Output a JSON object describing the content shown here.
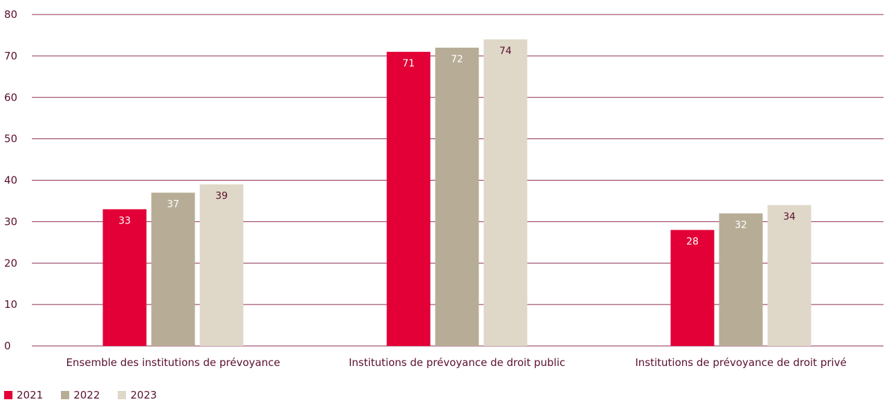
{
  "chart_data": {
    "type": "bar",
    "categories": [
      "Ensemble des institutions de prévoyance",
      "Institutions de prévoyance de droit public",
      "Institutions de prévoyance de droit privé"
    ],
    "series": [
      {
        "name": "2021",
        "values": [
          33,
          71,
          28
        ],
        "color": "#e20037"
      },
      {
        "name": "2022",
        "values": [
          37,
          72,
          32
        ],
        "color": "#b7ad97"
      },
      {
        "name": "2023",
        "values": [
          39,
          74,
          34
        ],
        "color": "#dfd8c8"
      }
    ],
    "ylim": [
      0,
      80
    ],
    "yticks": [
      0,
      10,
      20,
      30,
      40,
      50,
      60,
      70,
      80
    ],
    "grid": true,
    "legend_position": "bottom-left",
    "gridline_color": "#8c2a52",
    "text_color": "#5a0f2e"
  }
}
